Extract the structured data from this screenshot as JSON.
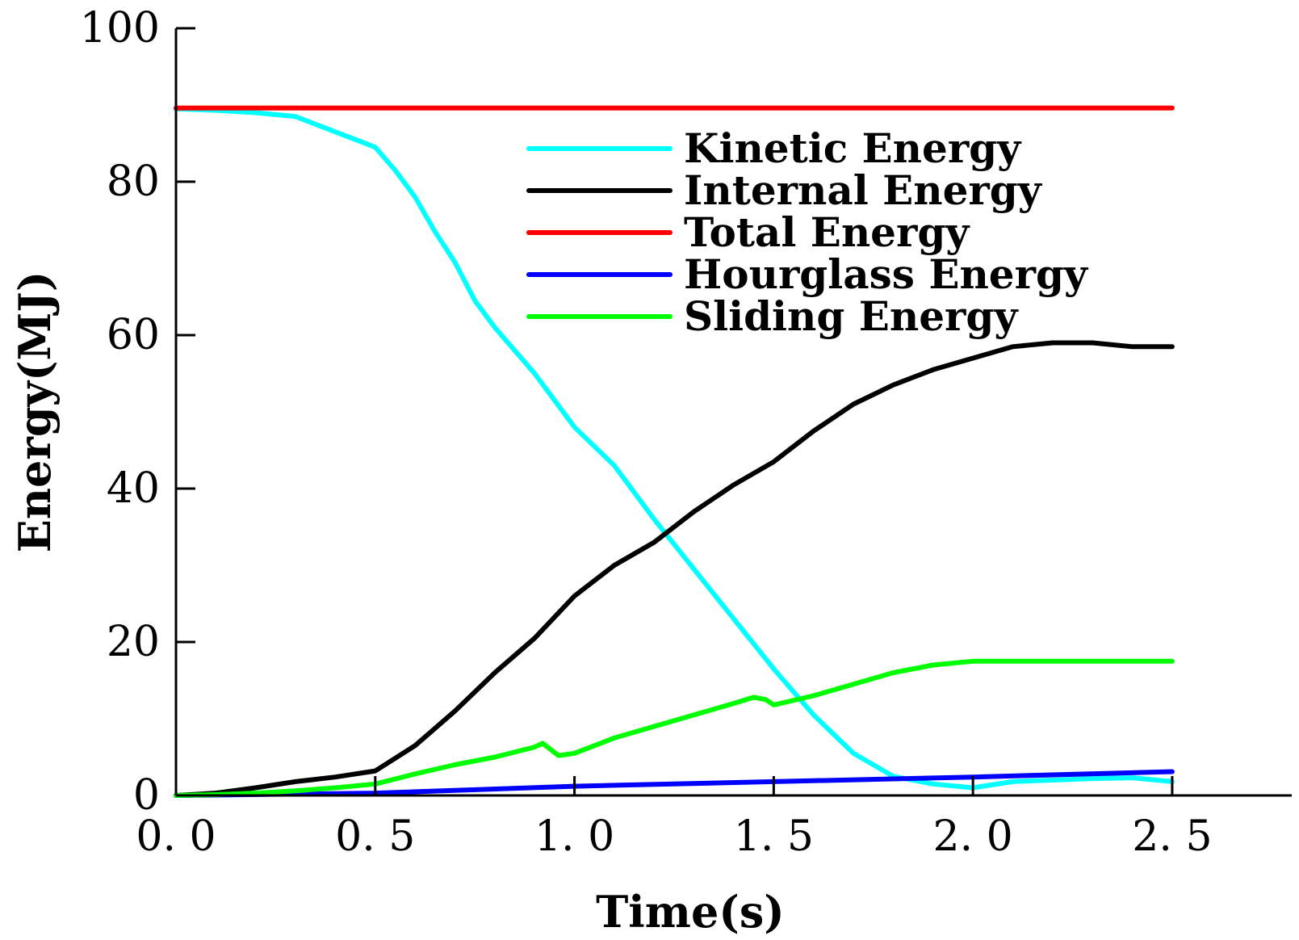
{
  "chart_data": {
    "type": "line",
    "title": "",
    "xlabel": "Time(s)",
    "ylabel": "Energy(MJ)",
    "xlim": [
      0,
      2.8
    ],
    "ylim": [
      0,
      100
    ],
    "x_ticks": [
      0,
      0.5,
      1.0,
      1.5,
      2.0,
      2.5
    ],
    "x_tick_labels": [
      "0. 0",
      "0. 5",
      "1. 0",
      "1. 5",
      "2. 0",
      "2. 5"
    ],
    "y_ticks": [
      0,
      20,
      40,
      60,
      80,
      100
    ],
    "y_tick_labels": [
      "0",
      "20",
      "40",
      "60",
      "80",
      "100"
    ],
    "grid": false,
    "legend_position": "top-right",
    "series": [
      {
        "name": "Kinetic Energy",
        "color": "#00ffff",
        "x": [
          0,
          0.1,
          0.2,
          0.3,
          0.35,
          0.4,
          0.5,
          0.55,
          0.6,
          0.65,
          0.7,
          0.75,
          0.8,
          0.9,
          1.0,
          1.1,
          1.2,
          1.3,
          1.4,
          1.5,
          1.6,
          1.7,
          1.8,
          1.9,
          2.0,
          2.1,
          2.2,
          2.3,
          2.4,
          2.5
        ],
        "values": [
          89.5,
          89.3,
          89.0,
          88.5,
          87.5,
          86.5,
          84.5,
          81.5,
          78.0,
          73.5,
          69.5,
          64.5,
          61.0,
          55.0,
          48.0,
          43.0,
          36.0,
          29.5,
          23.0,
          16.5,
          10.5,
          5.5,
          2.5,
          1.5,
          1.0,
          1.8,
          2.0,
          2.2,
          2.3,
          1.8
        ]
      },
      {
        "name": "Internal Energy",
        "color": "#000000",
        "x": [
          0,
          0.1,
          0.2,
          0.3,
          0.4,
          0.5,
          0.6,
          0.7,
          0.8,
          0.9,
          1.0,
          1.1,
          1.2,
          1.3,
          1.4,
          1.5,
          1.6,
          1.7,
          1.8,
          1.9,
          2.0,
          2.1,
          2.2,
          2.3,
          2.4,
          2.5
        ],
        "values": [
          0,
          0.3,
          1.0,
          1.8,
          2.4,
          3.2,
          6.5,
          11.0,
          16.0,
          20.5,
          26.0,
          30.0,
          33.0,
          37.0,
          40.5,
          43.5,
          47.5,
          51.0,
          53.5,
          55.5,
          57.0,
          58.5,
          59.0,
          59.0,
          58.5,
          58.5
        ]
      },
      {
        "name": "Total Energy",
        "color": "#ff0000",
        "x": [
          0,
          2.5
        ],
        "values": [
          89.6,
          89.6
        ]
      },
      {
        "name": "Hourglass Energy",
        "color": "#0000ff",
        "x": [
          0,
          0.5,
          1.0,
          1.5,
          2.0,
          2.5
        ],
        "values": [
          0,
          0.3,
          1.2,
          1.8,
          2.4,
          3.1
        ]
      },
      {
        "name": "Sliding Energy",
        "color": "#00ff00",
        "x": [
          0,
          0.1,
          0.2,
          0.3,
          0.4,
          0.5,
          0.6,
          0.7,
          0.8,
          0.9,
          0.92,
          0.96,
          1.0,
          1.1,
          1.2,
          1.3,
          1.4,
          1.45,
          1.48,
          1.5,
          1.6,
          1.7,
          1.8,
          1.9,
          2.0,
          2.1,
          2.2,
          2.3,
          2.4,
          2.5
        ],
        "values": [
          0,
          0.1,
          0.3,
          0.6,
          1.0,
          1.5,
          2.8,
          4.0,
          5.0,
          6.3,
          6.8,
          5.2,
          5.5,
          7.5,
          9.0,
          10.5,
          12.0,
          12.8,
          12.5,
          11.8,
          13.0,
          14.5,
          16.0,
          17.0,
          17.5,
          17.5,
          17.5,
          17.5,
          17.5,
          17.5
        ]
      }
    ]
  }
}
